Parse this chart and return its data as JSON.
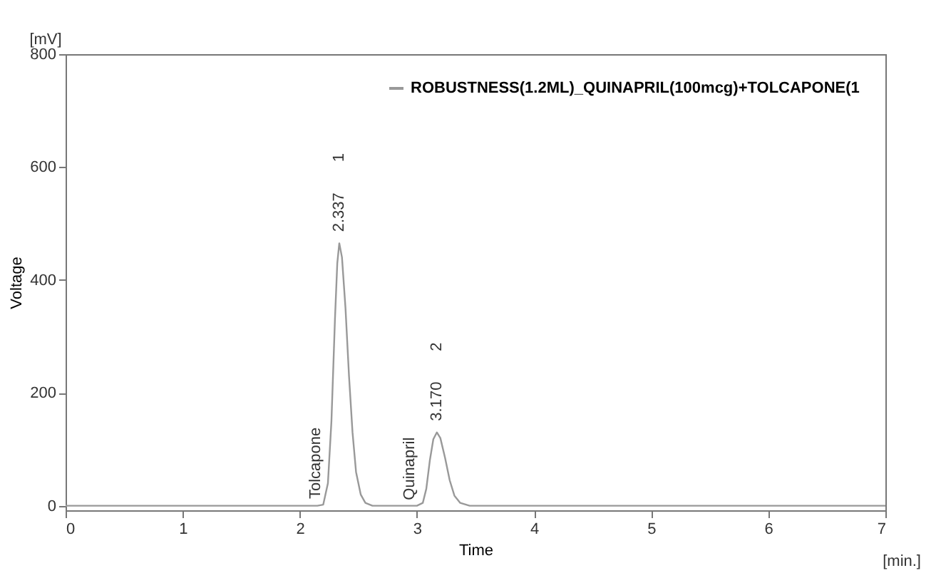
{
  "chart_data": {
    "type": "line",
    "xlabel": "Time",
    "ylabel": "Voltage",
    "xlim": [
      0,
      7
    ],
    "xticks": [
      0,
      1,
      2,
      3,
      4,
      5,
      6,
      7
    ],
    "ylim": [
      -8,
      800
    ],
    "yticks": [
      0,
      200,
      400,
      600,
      800
    ],
    "grid": false,
    "legend": "top right",
    "marker": "none",
    "line_style": "solid",
    "series": [
      {
        "name": "ROBUSTNESS(1.2ML)_QUINAPRIL(100mcg)+TOLCAPONE(1",
        "color": "#999999",
        "x": [
          0,
          2.15,
          2.2,
          2.24,
          2.27,
          2.3,
          2.32,
          2.337,
          2.36,
          2.39,
          2.42,
          2.45,
          2.48,
          2.52,
          2.56,
          2.62,
          3.0,
          3.05,
          3.08,
          3.11,
          3.14,
          3.17,
          3.2,
          3.24,
          3.28,
          3.32,
          3.37,
          3.45,
          7
        ],
        "values": [
          0,
          0,
          2,
          40,
          150,
          330,
          430,
          465,
          440,
          350,
          230,
          130,
          60,
          20,
          5,
          0,
          0,
          5,
          30,
          80,
          118,
          130,
          120,
          85,
          45,
          18,
          5,
          0,
          0
        ]
      }
    ],
    "annotations": [
      "[mV]",
      "[min.]",
      {
        "text": "2.337",
        "x": 2.337,
        "y": 465
      },
      "1",
      {
        "text": "Tolcapone",
        "x": 2.2,
        "y": 2
      },
      {
        "text": "3.170",
        "x": 3.17,
        "y": 130
      },
      "2",
      {
        "text": "Quinapril",
        "x": 3.0,
        "y": 0
      }
    ]
  }
}
